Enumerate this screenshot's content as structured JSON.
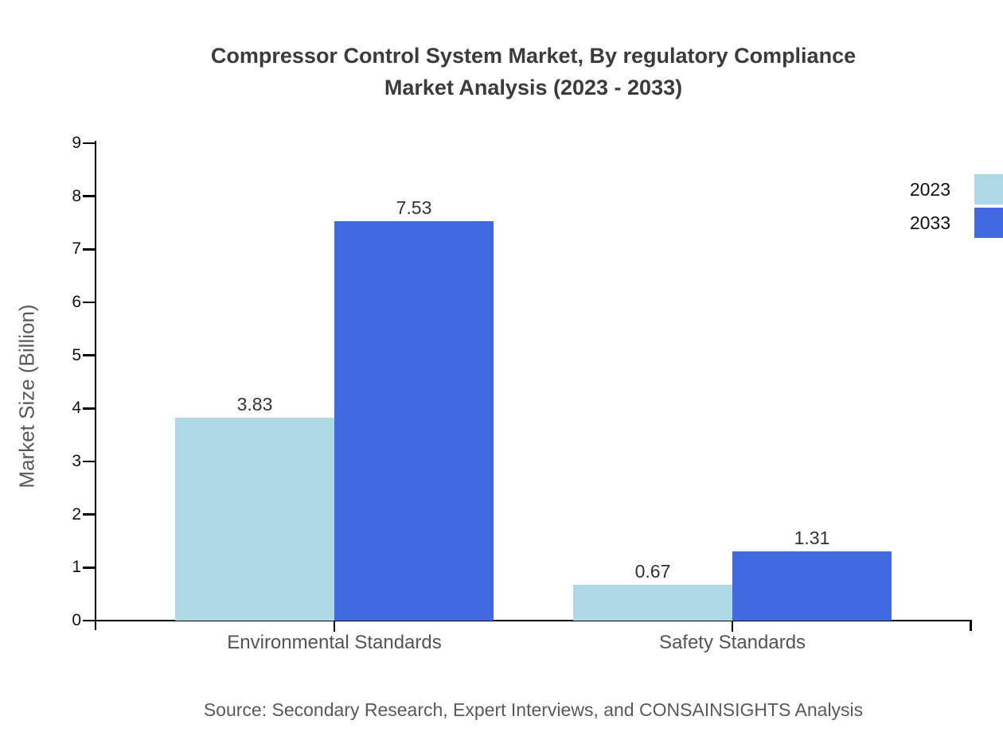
{
  "title_lines": [
    "Compressor Control System Market, By regulatory Compliance",
    "Market Analysis (2023 - 2033)"
  ],
  "source": "Source: Secondary Research, Expert Interviews, and CONSAINSIGHTS Analysis",
  "chart_data": {
    "type": "bar",
    "title": "Compressor Control System Market, By regulatory Compliance Market Analysis (2023 - 2033)",
    "categories": [
      "Environmental Standards",
      "Safety Standards"
    ],
    "series": [
      {
        "name": "2023",
        "color": "#ADD8E6",
        "values": [
          3.83,
          0.67
        ]
      },
      {
        "name": "2033",
        "color": "#4169E1",
        "values": [
          7.53,
          1.31
        ]
      }
    ],
    "xlabel": "",
    "ylabel": "Market Size (Billion)",
    "ylim": [
      0,
      9
    ],
    "yticks": [
      0,
      1,
      2,
      3,
      4,
      5,
      6,
      7,
      8,
      9
    ],
    "grid": false,
    "value_labels": true,
    "legend_position": "top-right"
  },
  "colors": {
    "series_2023": "#ADD8E6",
    "series_2033": "#4169E1",
    "axis": "#000000",
    "title_text": "#3b3b3b",
    "muted_text": "#595959"
  }
}
